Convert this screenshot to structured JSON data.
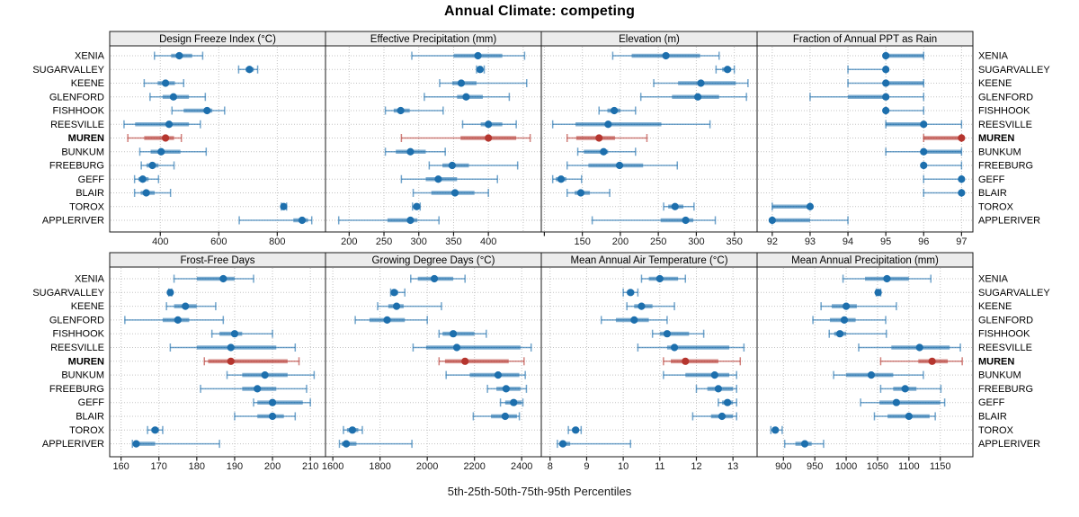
{
  "title": "Annual Climate: competing",
  "caption": "5th-25th-50th-75th-95th Percentiles",
  "sites": [
    "XENIA",
    "SUGARVALLEY",
    "KEENE",
    "GLENFORD",
    "FISHHOOK",
    "REESVILLE",
    "MUREN",
    "BUNKUM",
    "FREEBURG",
    "GEFF",
    "BLAIR",
    "TOROX",
    "APPLERIVER"
  ],
  "highlight_site": "MUREN",
  "colors": {
    "blue": "#1d6fad",
    "red": "#b5352e",
    "grid": "#c3c3c3",
    "strip_bg": "#ececec",
    "border": "#1a1a1a",
    "tick_text": "#1a1a1a"
  },
  "chart_data": [
    {
      "type": "scatter",
      "mark": "5-25-50-75-95-percentile-bar",
      "row": 0,
      "col": 0,
      "title": "Design Freeze Index (°C)",
      "xlim": [
        227,
        965
      ],
      "ticks": [
        {
          "v": 400,
          "label": "400"
        },
        {
          "v": 600,
          "label": "600"
        },
        {
          "v": 800,
          "label": "800"
        }
      ],
      "grid": [
        400,
        600,
        800
      ],
      "values": [
        [
          380,
          437,
          465,
          509,
          545
        ],
        [
          668,
          692,
          705,
          720,
          733
        ],
        [
          345,
          391,
          418,
          450,
          480
        ],
        [
          365,
          408,
          445,
          498,
          554
        ],
        [
          440,
          480,
          560,
          578,
          620
        ],
        [
          276,
          314,
          430,
          498,
          537
        ],
        [
          289,
          345,
          418,
          447,
          472
        ],
        [
          330,
          367,
          403,
          469,
          557
        ],
        [
          335,
          353,
          373,
          394,
          447
        ],
        [
          312,
          325,
          340,
          360,
          394
        ],
        [
          312,
          333,
          352,
          381,
          435
        ],
        [
          814,
          818,
          822,
          826,
          832
        ],
        [
          670,
          855,
          885,
          905,
          918
        ]
      ]
    },
    {
      "type": "scatter",
      "mark": "5-25-50-75-95-percentile-bar",
      "row": 0,
      "col": 1,
      "title": "Effective Precipitation (mm)",
      "xlim": [
        166,
        476
      ],
      "ticks": [
        {
          "v": 200,
          "label": "200"
        },
        {
          "v": 250,
          "label": "250"
        },
        {
          "v": 300,
          "label": "300"
        },
        {
          "v": 350,
          "label": "350"
        },
        {
          "v": 400,
          "label": "400"
        }
      ],
      "grid": [
        200,
        250,
        300,
        350,
        400,
        450
      ],
      "values": [
        [
          290,
          350,
          385,
          420,
          452
        ],
        [
          383,
          386,
          388,
          390,
          394
        ],
        [
          330,
          348,
          361,
          383,
          455
        ],
        [
          308,
          355,
          368,
          392,
          430
        ],
        [
          252,
          264,
          274,
          287,
          335
        ],
        [
          363,
          389,
          400,
          420,
          440
        ],
        [
          275,
          360,
          400,
          440,
          460
        ],
        [
          252,
          267,
          288,
          310,
          338
        ],
        [
          315,
          334,
          348,
          372,
          442
        ],
        [
          275,
          310,
          328,
          355,
          413
        ],
        [
          292,
          318,
          352,
          380,
          400
        ],
        [
          291,
          294,
          297,
          299,
          302
        ],
        [
          185,
          255,
          288,
          298,
          329
        ]
      ]
    },
    {
      "type": "scatter",
      "mark": "5-25-50-75-95-percentile-bar",
      "row": 0,
      "col": 2,
      "title": "Elevation (m)",
      "xlim": [
        96,
        380
      ],
      "ticks": [
        {
          "v": 100,
          "label": ""
        },
        {
          "v": 150,
          "label": "150"
        },
        {
          "v": 200,
          "label": "200"
        },
        {
          "v": 250,
          "label": "250"
        },
        {
          "v": 300,
          "label": "300"
        },
        {
          "v": 350,
          "label": "350"
        }
      ],
      "grid": [
        100,
        150,
        200,
        250,
        300,
        350
      ],
      "values": [
        [
          190,
          215,
          260,
          305,
          330
        ],
        [
          326,
          334,
          341,
          346,
          350
        ],
        [
          244,
          276,
          306,
          352,
          368
        ],
        [
          227,
          268,
          302,
          330,
          366
        ],
        [
          172,
          183,
          192,
          200,
          220
        ],
        [
          111,
          141,
          184,
          254,
          318
        ],
        [
          130,
          142,
          172,
          193,
          235
        ],
        [
          144,
          152,
          178,
          184,
          220
        ],
        [
          130,
          158,
          199,
          230,
          275
        ],
        [
          111,
          115,
          122,
          129,
          149
        ],
        [
          130,
          140,
          148,
          160,
          186
        ],
        [
          257,
          263,
          272,
          283,
          297
        ],
        [
          163,
          253,
          286,
          296,
          325
        ]
      ]
    },
    {
      "type": "scatter",
      "mark": "5-25-50-75-95-percentile-bar",
      "row": 0,
      "col": 3,
      "title": "Fraction of Annual PPT as Rain",
      "xlim": [
        91.6,
        97.3
      ],
      "ticks": [
        {
          "v": 92,
          "label": "92"
        },
        {
          "v": 93,
          "label": "93"
        },
        {
          "v": 94,
          "label": "94"
        },
        {
          "v": 95,
          "label": "95"
        },
        {
          "v": 96,
          "label": "96"
        },
        {
          "v": 97,
          "label": "97"
        }
      ],
      "grid": [
        92,
        93,
        94,
        95,
        96,
        97
      ],
      "values": [
        [
          95,
          95,
          95,
          96,
          96
        ],
        [
          94,
          95,
          95,
          95,
          95
        ],
        [
          94,
          95,
          95,
          96,
          96
        ],
        [
          93,
          94,
          95,
          95,
          96
        ],
        [
          95,
          95,
          95,
          95,
          96
        ],
        [
          95,
          95,
          96,
          96,
          97
        ],
        [
          96,
          96,
          97,
          97,
          97
        ],
        [
          95,
          96,
          96,
          97,
          97
        ],
        [
          96,
          96,
          96,
          96,
          97
        ],
        [
          96,
          97,
          97,
          97,
          97
        ],
        [
          96,
          97,
          97,
          97,
          97
        ],
        [
          92,
          92,
          93,
          93,
          93
        ],
        [
          92,
          92,
          92,
          93,
          94
        ]
      ]
    },
    {
      "type": "scatter",
      "mark": "5-25-50-75-95-percentile-bar",
      "row": 1,
      "col": 0,
      "title": "Frost-Free Days",
      "xlim": [
        157,
        214
      ],
      "ticks": [
        {
          "v": 160,
          "label": "160"
        },
        {
          "v": 170,
          "label": "170"
        },
        {
          "v": 180,
          "label": "180"
        },
        {
          "v": 190,
          "label": "190"
        },
        {
          "v": 200,
          "label": "200"
        },
        {
          "v": 210,
          "label": "210"
        }
      ],
      "grid": [
        160,
        170,
        180,
        190,
        200,
        210
      ],
      "values": [
        [
          174,
          180,
          187,
          190,
          195
        ],
        [
          172.6,
          172.8,
          173,
          173.2,
          173.4
        ],
        [
          172,
          174,
          177,
          180,
          185
        ],
        [
          161,
          171,
          175,
          178,
          187
        ],
        [
          184,
          186,
          190,
          192,
          200
        ],
        [
          173,
          180,
          189,
          201,
          206
        ],
        [
          182,
          183,
          189,
          204,
          207
        ],
        [
          188,
          192,
          198,
          204,
          211
        ],
        [
          181,
          192,
          196,
          201,
          209
        ],
        [
          195,
          196,
          200,
          208,
          210
        ],
        [
          190,
          196,
          200,
          203,
          206
        ],
        [
          167,
          168,
          169,
          170,
          171
        ],
        [
          163,
          163.3,
          164,
          169,
          186
        ]
      ]
    },
    {
      "type": "scatter",
      "mark": "5-25-50-75-95-percentile-bar",
      "row": 1,
      "col": 1,
      "title": "Growing Degree Days (°C)",
      "xlim": [
        1569,
        2483
      ],
      "ticks": [
        {
          "v": 1600,
          "label": "1600"
        },
        {
          "v": 1800,
          "label": "1800"
        },
        {
          "v": 2000,
          "label": "2000"
        },
        {
          "v": 2200,
          "label": "2200"
        },
        {
          "v": 2400,
          "label": "2400"
        }
      ],
      "grid": [
        1600,
        1800,
        2000,
        2200,
        2400
      ],
      "values": [
        [
          1930,
          1960,
          2030,
          2110,
          2160
        ],
        [
          1845,
          1852,
          1860,
          1877,
          1905
        ],
        [
          1790,
          1835,
          1870,
          1900,
          2060
        ],
        [
          1695,
          1755,
          1830,
          1905,
          2000
        ],
        [
          2050,
          2065,
          2110,
          2200,
          2250
        ],
        [
          1940,
          1995,
          2125,
          2395,
          2440
        ],
        [
          2050,
          2075,
          2160,
          2345,
          2410
        ],
        [
          2080,
          2180,
          2300,
          2390,
          2415
        ],
        [
          2255,
          2293,
          2334,
          2395,
          2420
        ],
        [
          2310,
          2330,
          2366,
          2400,
          2405
        ],
        [
          2195,
          2270,
          2330,
          2380,
          2390
        ],
        [
          1645,
          1660,
          1683,
          1708,
          1725
        ],
        [
          1628,
          1637,
          1657,
          1700,
          1935
        ]
      ]
    },
    {
      "type": "scatter",
      "mark": "5-25-50-75-95-percentile-bar",
      "row": 1,
      "col": 2,
      "title": "Mean Annual Air Temperature (°C)",
      "xlim": [
        7.76,
        13.66
      ],
      "ticks": [
        {
          "v": 8,
          "label": "8"
        },
        {
          "v": 9,
          "label": "9"
        },
        {
          "v": 10,
          "label": "10"
        },
        {
          "v": 11,
          "label": "11"
        },
        {
          "v": 12,
          "label": "12"
        },
        {
          "v": 13,
          "label": "13"
        }
      ],
      "grid": [
        8,
        9,
        10,
        11,
        12,
        13
      ],
      "values": [
        [
          10.5,
          10.7,
          11.0,
          11.5,
          11.7
        ],
        [
          10.0,
          10.1,
          10.2,
          10.3,
          10.4
        ],
        [
          10.1,
          10.3,
          10.5,
          10.8,
          11.4
        ],
        [
          9.4,
          9.8,
          10.3,
          10.7,
          11.2
        ],
        [
          10.8,
          11.0,
          11.2,
          11.8,
          12.2
        ],
        [
          10.4,
          11.2,
          11.4,
          12.9,
          13.3
        ],
        [
          11.1,
          11.3,
          11.7,
          12.6,
          13.2
        ],
        [
          11.1,
          11.7,
          12.5,
          12.9,
          13.1
        ],
        [
          12.0,
          12.3,
          12.6,
          13.0,
          13.1
        ],
        [
          12.6,
          12.7,
          12.85,
          13.0,
          13.1
        ],
        [
          11.9,
          12.4,
          12.7,
          13.0,
          13.1
        ],
        [
          8.5,
          8.6,
          8.7,
          8.75,
          8.85
        ],
        [
          8.2,
          8.25,
          8.35,
          8.55,
          10.2
        ]
      ]
    },
    {
      "type": "scatter",
      "mark": "5-25-50-75-95-percentile-bar",
      "row": 1,
      "col": 3,
      "title": "Mean Annual Precipitation (mm)",
      "xlim": [
        858,
        1202
      ],
      "ticks": [
        {
          "v": 900,
          "label": "900"
        },
        {
          "v": 950,
          "label": "950"
        },
        {
          "v": 1000,
          "label": "1000"
        },
        {
          "v": 1050,
          "label": "1050"
        },
        {
          "v": 1100,
          "label": "1100"
        },
        {
          "v": 1150,
          "label": "1150"
        }
      ],
      "grid": [
        900,
        950,
        1000,
        1050,
        1100,
        1150
      ],
      "values": [
        [
          995,
          1030,
          1065,
          1100,
          1135
        ],
        [
          1048,
          1050,
          1051,
          1053,
          1055
        ],
        [
          960,
          977,
          1000,
          1017,
          1080
        ],
        [
          947,
          974,
          997,
          1015,
          1063
        ],
        [
          973,
          981,
          990,
          1000,
          1064
        ],
        [
          1020,
          1072,
          1117,
          1165,
          1182
        ],
        [
          1055,
          1115,
          1137,
          1162,
          1185
        ],
        [
          980,
          1000,
          1040,
          1075,
          1123
        ],
        [
          1055,
          1075,
          1094,
          1112,
          1151
        ],
        [
          1023,
          1053,
          1080,
          1150,
          1157
        ],
        [
          1045,
          1066,
          1100,
          1133,
          1142
        ],
        [
          880,
          883,
          887,
          892,
          898
        ],
        [
          902,
          919,
          934,
          945,
          964
        ]
      ]
    }
  ]
}
